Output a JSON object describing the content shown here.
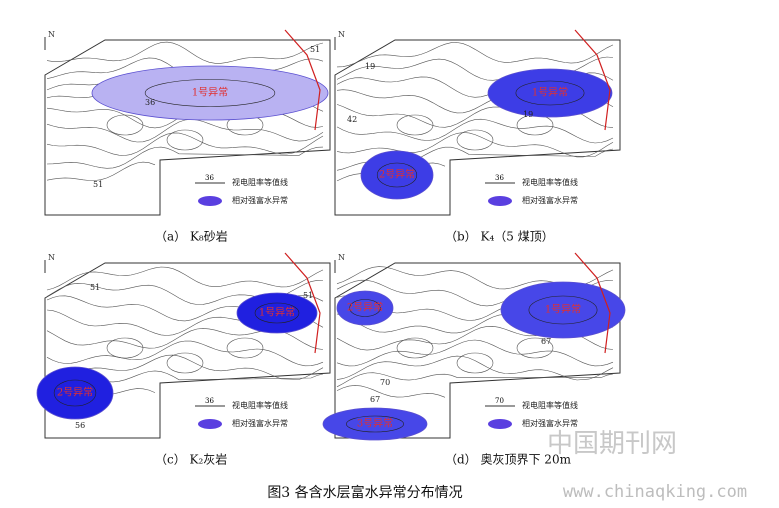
{
  "panels": [
    {
      "caption": "（a） K₈砂岩",
      "north": "N",
      "anomalies": [
        "1号异常"
      ],
      "contour_labels": [
        "36",
        "51",
        "51"
      ],
      "legend": {
        "sample": "36",
        "contour": "视电阻率等值线",
        "anomaly": "相对强富水异常"
      }
    },
    {
      "caption": "（b） K₄（5 煤顶）",
      "north": "N",
      "anomalies": [
        "1号异常",
        "2号异常"
      ],
      "contour_labels": [
        "19",
        "42",
        "19"
      ],
      "legend": {
        "sample": "36",
        "contour": "视电阻率等值线",
        "anomaly": "相对强富水异常"
      }
    },
    {
      "caption": "（c） K₂灰岩",
      "north": "N",
      "anomalies": [
        "1号异常",
        "2号异常"
      ],
      "contour_labels": [
        "51",
        "51",
        "56"
      ],
      "legend": {
        "sample": "36",
        "contour": "视电阻率等值线",
        "anomaly": "相对强富水异常"
      }
    },
    {
      "caption": "（d） 奥灰顶界下 20m",
      "north": "N",
      "anomalies": [
        "1号异常",
        "2号异常",
        "3号异常"
      ],
      "contour_labels": [
        "67",
        "70",
        "67"
      ],
      "legend": {
        "sample": "70",
        "contour": "视电阻率等值线",
        "anomaly": "相对强富水异常"
      }
    }
  ],
  "figure_caption": "图3 各含水层富水异常分布情况",
  "watermark": {
    "site": "中国期刊网",
    "url": "www.chinaqking.com"
  }
}
